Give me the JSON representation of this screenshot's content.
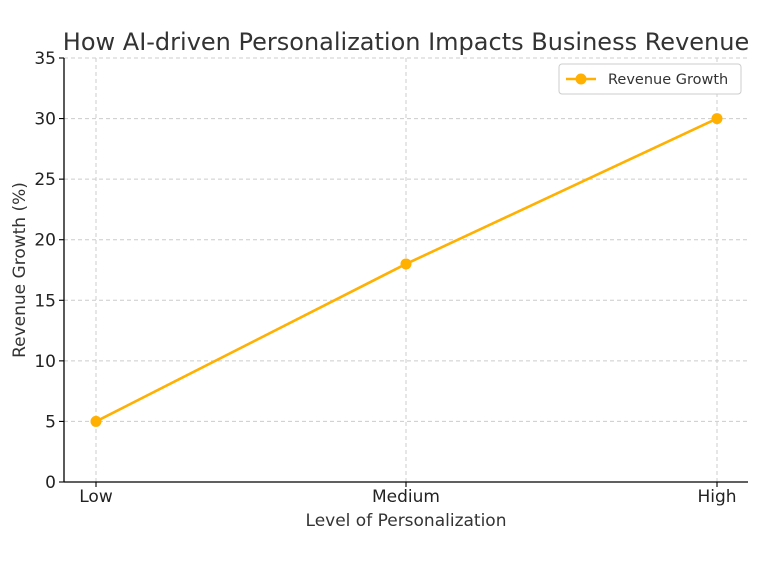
{
  "chart_data": {
    "type": "line",
    "title": "How AI-driven Personalization Impacts Business Revenue",
    "xlabel": "Level of Personalization",
    "ylabel": "Revenue Growth (%)",
    "categories": [
      "Low",
      "Medium",
      "High"
    ],
    "series": [
      {
        "name": "Revenue Growth",
        "values": [
          5,
          18,
          30
        ],
        "color": "#FFB000"
      }
    ],
    "ylim": [
      0,
      35
    ],
    "yticks": [
      0,
      5,
      10,
      15,
      20,
      25,
      30,
      35
    ],
    "grid": true,
    "legend_position": "top-right",
    "marker": "circle"
  }
}
